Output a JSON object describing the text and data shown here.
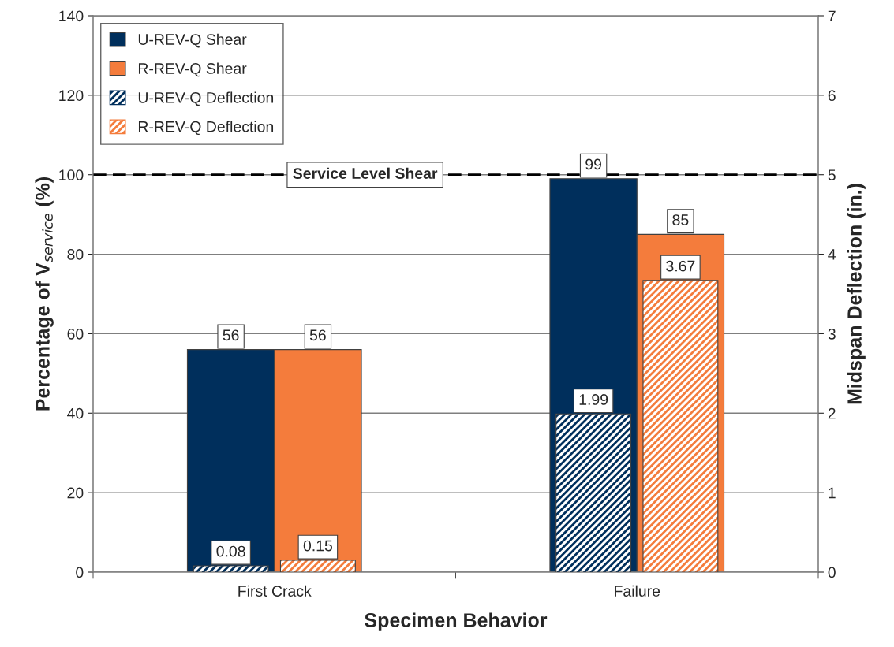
{
  "chart_data": {
    "type": "bar",
    "xlabel": "Specimen Behavior",
    "ylabel": "Percentage of V$_{service}$ (%)",
    "y2label": "Midspan Deflection (in.)",
    "categories": [
      "First Crack",
      "Failure"
    ],
    "series": [
      {
        "name": "U-REV-Q Shear",
        "color": "#002f5c",
        "values": [
          56,
          99
        ]
      },
      {
        "name": "R-REV-Q Shear",
        "color": "#f47c3c",
        "values": [
          56,
          85
        ]
      },
      {
        "name": "U-REV-Q Deflection",
        "color": "#002f5c",
        "values": [
          0.08,
          1.99
        ],
        "axis": "y2"
      },
      {
        "name": "R-REV-Q Deflection",
        "color": "#f47c3c",
        "values": [
          0.15,
          3.67
        ],
        "axis": "y2"
      }
    ],
    "ylim": [
      0,
      140
    ],
    "yticks": [
      0,
      20,
      40,
      60,
      80,
      100,
      120,
      140
    ],
    "y2lim": [
      0,
      7
    ],
    "y2ticks": [
      0,
      1,
      2,
      3,
      4,
      5,
      6,
      7
    ],
    "ref_lines": [
      {
        "axis": "y",
        "value": 100,
        "label": "Service Level Shear",
        "color": "#000000",
        "line_style": "dashed"
      }
    ],
    "data_labels": true,
    "grid": "y",
    "legend": "top left"
  }
}
